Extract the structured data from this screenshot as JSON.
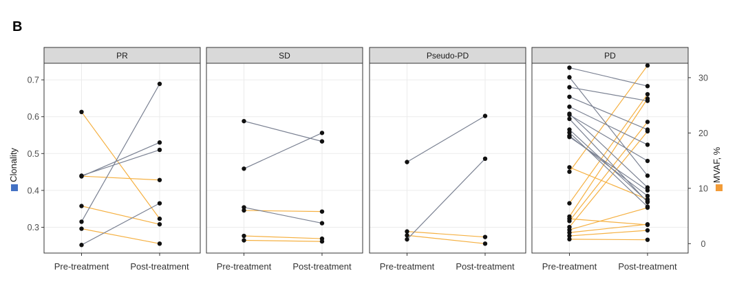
{
  "panel_label": "B",
  "chart_data": {
    "type": "line",
    "description_axes": {
      "left": {
        "label": "Clonality",
        "range": [
          0.23,
          0.745
        ],
        "ticks": [
          0.3,
          0.4,
          0.5,
          0.6,
          0.7
        ],
        "tick_labels": [
          "0.3",
          "0.4",
          "0.5",
          "0.6",
          "0.7"
        ],
        "legend_color": "#4472c4"
      },
      "right": {
        "label": "MVAF, %",
        "range": [
          -1.7,
          32.6
        ],
        "ticks": [
          0,
          10,
          20,
          30
        ],
        "tick_labels": [
          "0",
          "10",
          "20",
          "30"
        ],
        "legend_color": "#f29c38"
      }
    },
    "x_categories": [
      "Pre-treatment",
      "Post-treatment"
    ],
    "colors": {
      "clonality": "#7a8192",
      "mvaf": "#f5b041",
      "point": "#111111",
      "strip_fill": "#d9d9d9",
      "grid": "#ebebeb"
    },
    "facets": [
      {
        "title": "PR",
        "clonality": [
          [
            0.44,
            0.51
          ],
          [
            0.438,
            0.53
          ],
          [
            0.315,
            0.689
          ],
          [
            0.252,
            0.365
          ]
        ],
        "mvaf": [
          [
            23.8,
            4.5
          ],
          [
            12.2,
            11.5
          ],
          [
            6.8,
            3.5
          ],
          [
            2.7,
            0.0
          ]
        ]
      },
      {
        "title": "SD",
        "clonality": [
          [
            0.588,
            0.533
          ],
          [
            0.459,
            0.556
          ],
          [
            0.354,
            0.311
          ]
        ],
        "mvaf": [
          [
            6.0,
            5.8
          ],
          [
            1.4,
            0.9
          ],
          [
            0.6,
            0.4
          ]
        ]
      },
      {
        "title": "Pseudo-PD",
        "clonality": [
          [
            0.477,
            0.602
          ],
          [
            0.267,
            0.486
          ]
        ],
        "mvaf": [
          [
            2.2,
            1.2
          ],
          [
            1.5,
            0.0
          ]
        ]
      },
      {
        "title": "PD",
        "clonality": [
          [
            0.733,
            0.683
          ],
          [
            0.707,
            0.44
          ],
          [
            0.68,
            0.643
          ],
          [
            0.654,
            0.565
          ],
          [
            0.627,
            0.524
          ],
          [
            0.608,
            0.408
          ],
          [
            0.605,
            0.48
          ],
          [
            0.594,
            0.368
          ],
          [
            0.565,
            0.37
          ],
          [
            0.557,
            0.356
          ],
          [
            0.548,
            0.385
          ],
          [
            0.545,
            0.4
          ]
        ],
        "mvaf": [
          [
            13.0,
            32.2
          ],
          [
            7.3,
            27.0
          ],
          [
            4.9,
            26.2
          ],
          [
            4.1,
            22.0
          ],
          [
            3.0,
            20.3
          ],
          [
            2.5,
            6.5
          ],
          [
            2.0,
            3.5
          ],
          [
            1.4,
            2.4
          ],
          [
            0.8,
            0.7
          ],
          [
            13.8,
            8.0
          ],
          [
            4.5,
            3.4
          ]
        ]
      }
    ]
  }
}
